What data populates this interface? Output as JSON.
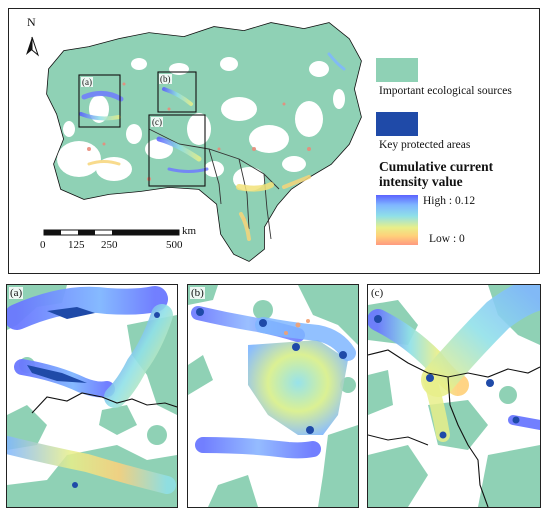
{
  "main_map": {
    "north_label": "N",
    "inset_markers": [
      "(a)",
      "(b)",
      "(c)"
    ],
    "scale_bar": {
      "ticks": [
        "0",
        "125",
        "250",
        "500"
      ],
      "unit": "km"
    }
  },
  "legend": {
    "ecological_sources_label": "Important ecological sources",
    "protected_areas_label": "Key protected areas",
    "title_line1": "Cumulative current",
    "title_line2": "intensity value",
    "high_label": "High : 0.12",
    "low_label": "Low : 0",
    "colors": {
      "ecological_sources": "#8fd1b5",
      "protected_areas": "#1f4aa8",
      "gradient": [
        "#5b62ff",
        "#7fb6ff",
        "#8fe0e8",
        "#e8ef8a",
        "#ffd07a",
        "#ff9a80"
      ]
    }
  },
  "panels": [
    {
      "label": "(a)"
    },
    {
      "label": "(b)"
    },
    {
      "label": "(c)"
    }
  ]
}
